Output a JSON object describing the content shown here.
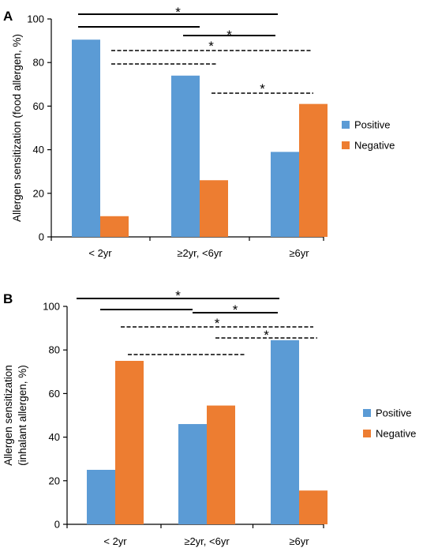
{
  "chart_data": [
    {
      "panel_label": "A",
      "type": "bar",
      "categories": [
        "< 2yr",
        "≥2yr, <6yr",
        "≥6yr"
      ],
      "series": [
        {
          "name": "Positive",
          "color": "#5B9BD5",
          "values": [
            90.5,
            74,
            39
          ]
        },
        {
          "name": "Negative",
          "color": "#ED7D31",
          "values": [
            9.5,
            26,
            61
          ]
        }
      ],
      "ylabel": [
        "Allergen sensitization (food allergen, %)"
      ],
      "ylim": [
        0,
        100
      ],
      "yticks": [
        0,
        20,
        40,
        60,
        80,
        100
      ],
      "legend_position": "right",
      "significance": [
        {
          "from": "< 2yr",
          "to": "≥6yr",
          "style": "solid",
          "label": "*"
        },
        {
          "from": "< 2yr",
          "to": "≥2yr, <6yr",
          "style": "solid",
          "label": ""
        },
        {
          "from": "≥2yr, <6yr",
          "to": "≥6yr",
          "style": "solid",
          "label": "*"
        },
        {
          "from": "< 2yr",
          "to": "≥6yr",
          "style": "dashed",
          "label": "*"
        },
        {
          "from": "< 2yr",
          "to": "≥2yr, <6yr",
          "style": "dashed",
          "label": ""
        },
        {
          "from": "≥2yr, <6yr",
          "to": "≥6yr",
          "style": "dashed",
          "label": "*"
        }
      ]
    },
    {
      "panel_label": "B",
      "type": "bar",
      "categories": [
        "< 2yr",
        "≥2yr, <6yr",
        "≥6yr"
      ],
      "series": [
        {
          "name": "Positive",
          "color": "#5B9BD5",
          "values": [
            25,
            46,
            84.5
          ]
        },
        {
          "name": "Negative",
          "color": "#ED7D31",
          "values": [
            75,
            54.5,
            15.5
          ]
        }
      ],
      "ylabel": [
        "Allergen sensitization",
        "(inhalant allergen, %)"
      ],
      "ylim": [
        0,
        100
      ],
      "yticks": [
        0,
        20,
        40,
        60,
        80,
        100
      ],
      "legend_position": "right",
      "significance": [
        {
          "from": "< 2yr",
          "to": "≥6yr",
          "style": "solid",
          "label": "*"
        },
        {
          "from": "< 2yr",
          "to": "≥2yr, <6yr",
          "style": "solid",
          "label": ""
        },
        {
          "from": "≥2yr, <6yr",
          "to": "≥6yr",
          "style": "solid",
          "label": "*"
        },
        {
          "from": "< 2yr",
          "to": "≥6yr",
          "style": "dashed",
          "label": "*"
        },
        {
          "from": "< 2yr",
          "to": "≥2yr, <6yr",
          "style": "dashed",
          "label": ""
        },
        {
          "from": "≥2yr, <6yr",
          "to": "≥6yr",
          "style": "dashed",
          "label": "*"
        }
      ]
    }
  ]
}
